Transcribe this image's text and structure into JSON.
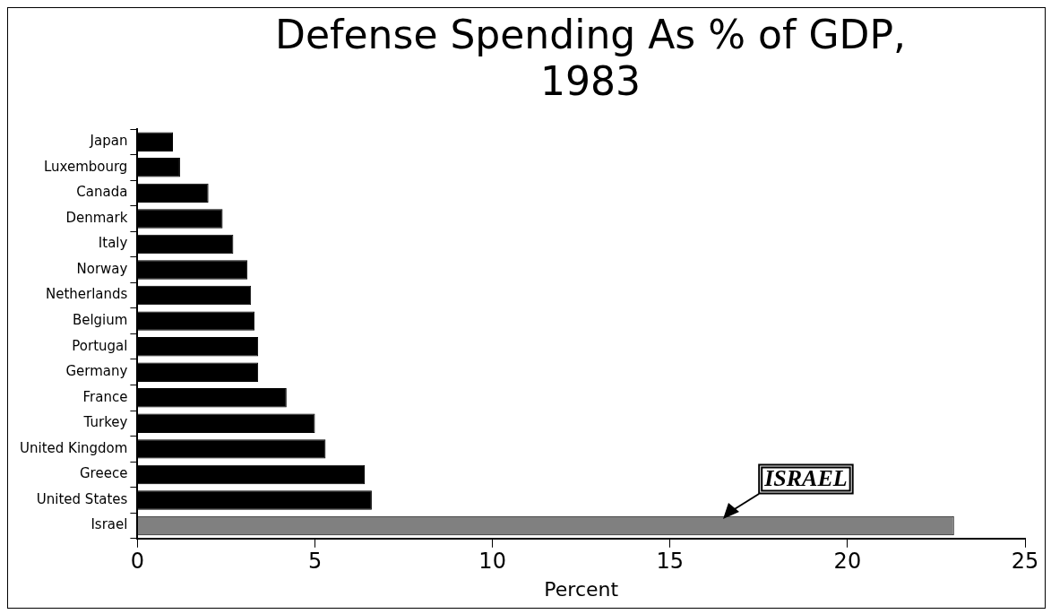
{
  "chart_data": {
    "type": "bar",
    "orientation": "horizontal",
    "title": "Defense Spending As % of GDP, 1983",
    "xlabel": "Percent",
    "categories": [
      "Japan",
      "Luxembourg",
      "Canada",
      "Denmark",
      "Italy",
      "Norway",
      "Netherlands",
      "Belgium",
      "Portugal",
      "Germany",
      "France",
      "Turkey",
      "United Kingdom",
      "Greece",
      "United States",
      "Israel"
    ],
    "values": [
      1.0,
      1.2,
      2.0,
      2.4,
      2.7,
      3.1,
      3.2,
      3.3,
      3.4,
      3.4,
      4.2,
      5.0,
      5.3,
      6.4,
      6.6,
      23.0
    ],
    "colors": [
      "#000000",
      "#000000",
      "#000000",
      "#000000",
      "#000000",
      "#000000",
      "#000000",
      "#000000",
      "#000000",
      "#000000",
      "#000000",
      "#000000",
      "#000000",
      "#000000",
      "#000000",
      "#808080"
    ],
    "xlim": [
      0,
      25
    ],
    "xticks": [
      0,
      5,
      10,
      15,
      20,
      25
    ],
    "grid": false,
    "legend": false,
    "annotations": [
      {
        "text": "ISRAEL",
        "x": 16.5,
        "y": "Israel"
      }
    ]
  }
}
